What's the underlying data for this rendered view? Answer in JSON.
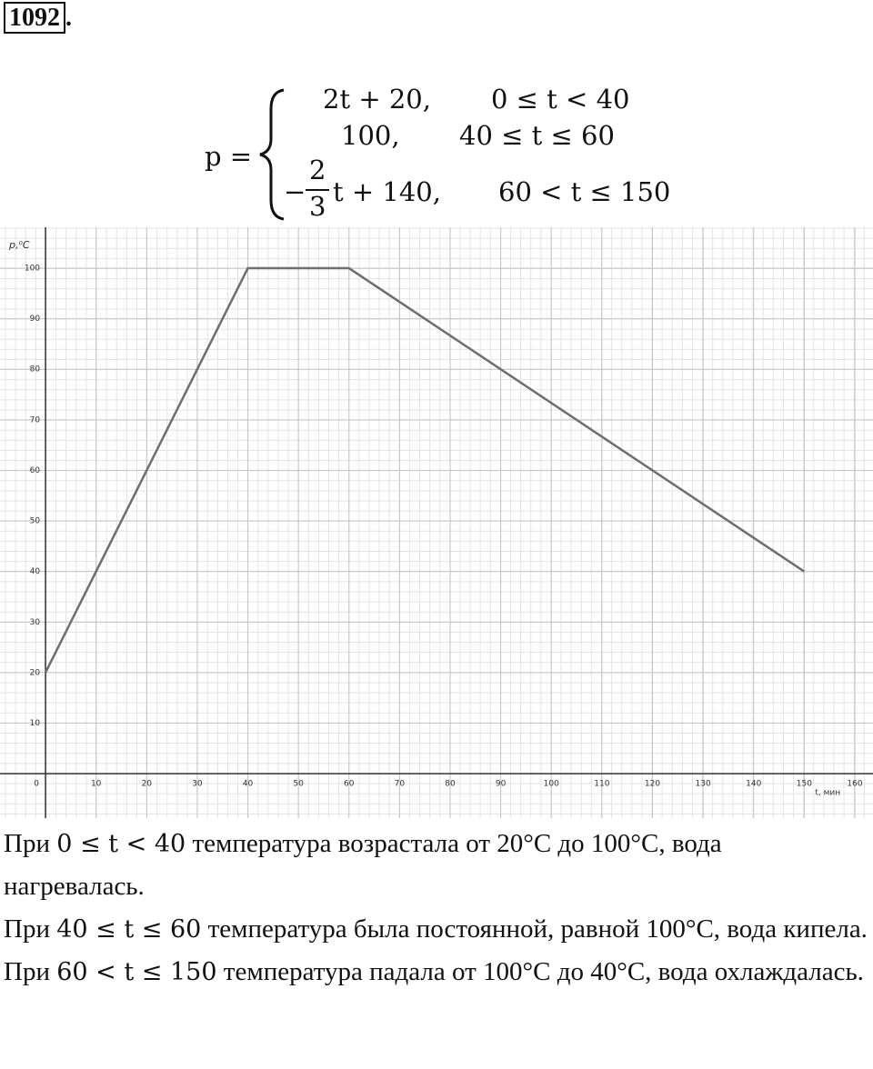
{
  "header": {
    "number": "1092",
    "dot": "."
  },
  "formula": {
    "lhs": "p =",
    "cases": [
      {
        "expr": "2t + 20,",
        "cond": "0 ≤ t < 40"
      },
      {
        "expr": "100,",
        "cond": "40 ≤ t ≤ 60"
      },
      {
        "sign": "−",
        "num": "2",
        "den": "3",
        "expr": "t + 140,",
        "cond": "60 < t ≤ 150"
      }
    ]
  },
  "chart_data": {
    "type": "line",
    "x": [
      0,
      40,
      60,
      150
    ],
    "values": [
      20,
      100,
      100,
      40
    ],
    "color": "#6e6e6e",
    "xlim": [
      -9,
      163.6
    ],
    "ylim": [
      -8.8,
      108.1
    ],
    "xticks": [
      0,
      10,
      20,
      30,
      40,
      50,
      60,
      70,
      80,
      90,
      100,
      110,
      120,
      130,
      140,
      150,
      160
    ],
    "yticks": [
      10,
      20,
      30,
      40,
      50,
      60,
      70,
      80,
      90,
      100
    ],
    "xlabel": "t, мин",
    "ylabel": "p,⁰C",
    "grid": true,
    "minor_grid": true
  },
  "paragraphs": [
    {
      "lead": "При",
      "math": "0 ≤ t < 40",
      "text": "температура возрастала от 20°C до 100°C, вода нагревалась."
    },
    {
      "lead": "При",
      "math": "40 ≤ t ≤ 60",
      "text": "температура была постоянной, равной 100°C, вода кипела."
    },
    {
      "lead": "При",
      "math": "60 < t ≤ 150",
      "text": "температура падала от 100°C до 40°C, вода охлаждалась."
    }
  ]
}
